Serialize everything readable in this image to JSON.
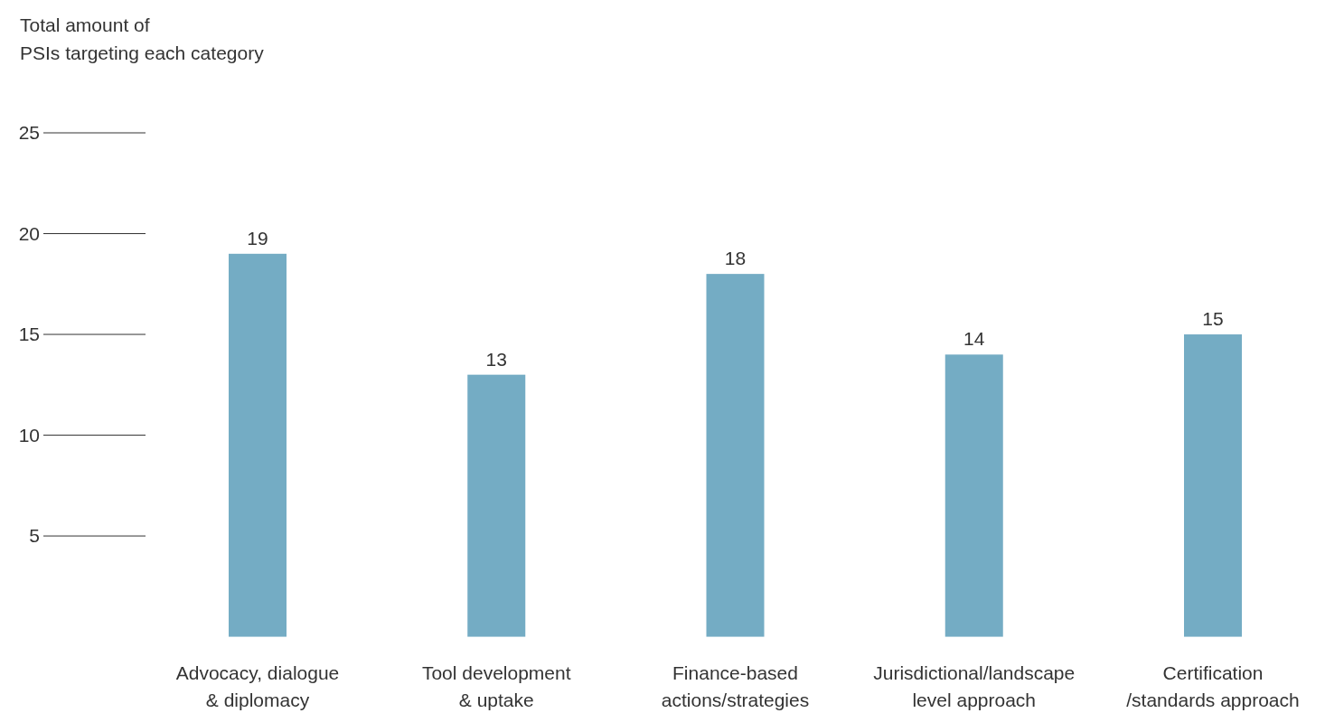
{
  "chart_data": {
    "type": "bar",
    "ylabel": "Total amount of\nPSIs targeting each category",
    "categories": [
      "Advocacy, dialogue\n& diplomacy",
      "Tool development\n& uptake",
      "Finance-based\nactions/strategies",
      "Jurisdictional/landscape\nlevel approach",
      "Certification\n/standards approach"
    ],
    "values": [
      19,
      13,
      18,
      14,
      15
    ],
    "color": "#74acc4",
    "ylim": [
      0,
      25
    ],
    "yticks": [
      5,
      10,
      15,
      20,
      25
    ],
    "data_labels": true
  }
}
